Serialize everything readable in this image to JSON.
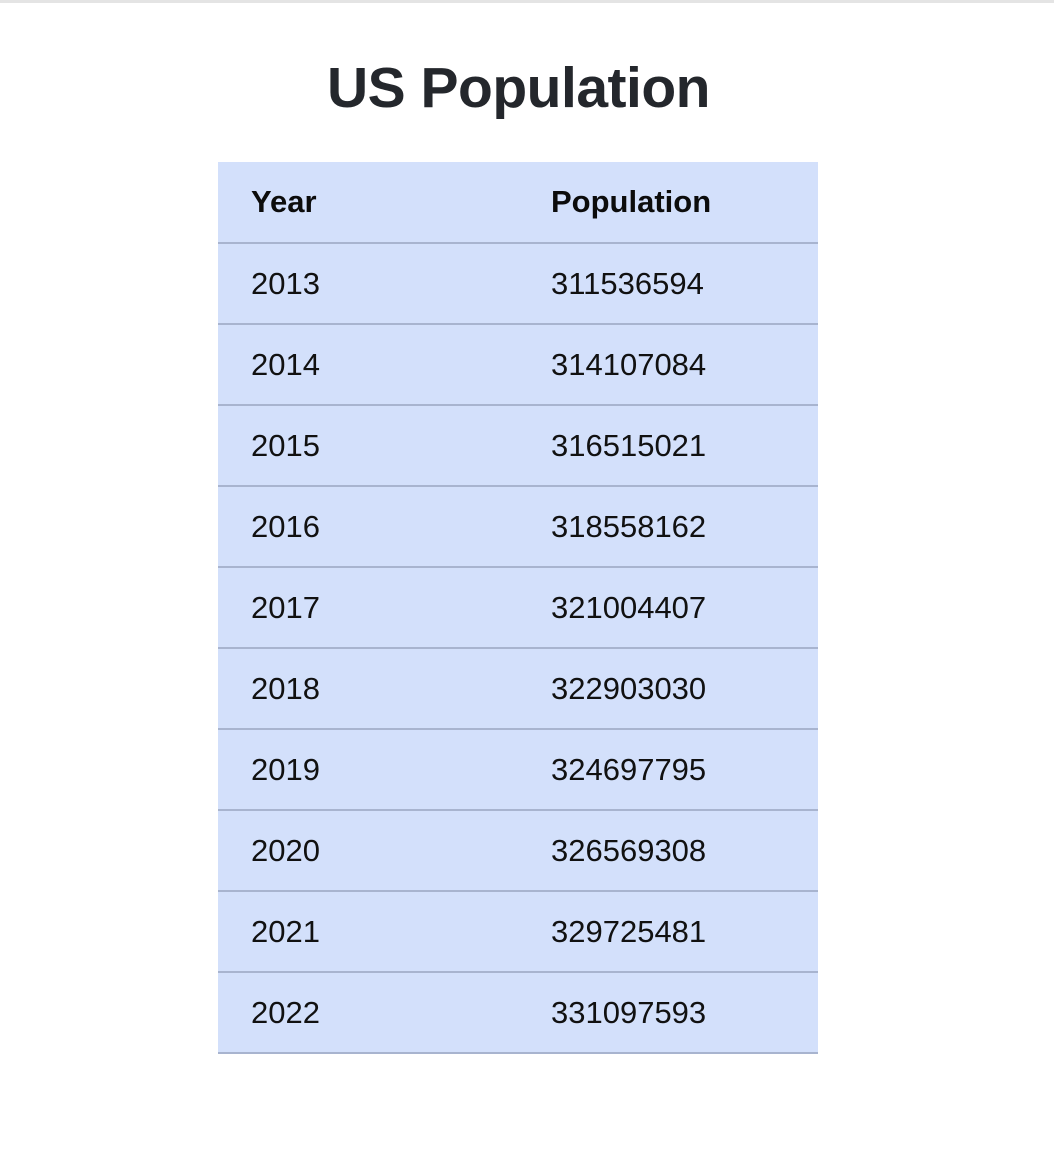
{
  "title": "US Population",
  "table": {
    "headers": [
      "Year",
      "Population"
    ],
    "rows": [
      [
        "2013",
        "311536594"
      ],
      [
        "2014",
        "314107084"
      ],
      [
        "2015",
        "316515021"
      ],
      [
        "2016",
        "318558162"
      ],
      [
        "2017",
        "321004407"
      ],
      [
        "2018",
        "322903030"
      ],
      [
        "2019",
        "324697795"
      ],
      [
        "2020",
        "326569308"
      ],
      [
        "2021",
        "329725481"
      ],
      [
        "2022",
        "331097593"
      ]
    ]
  },
  "colors": {
    "table_background": "#d3e0fb",
    "row_divider": "#a8b4cf",
    "title_text": "#24272c"
  }
}
